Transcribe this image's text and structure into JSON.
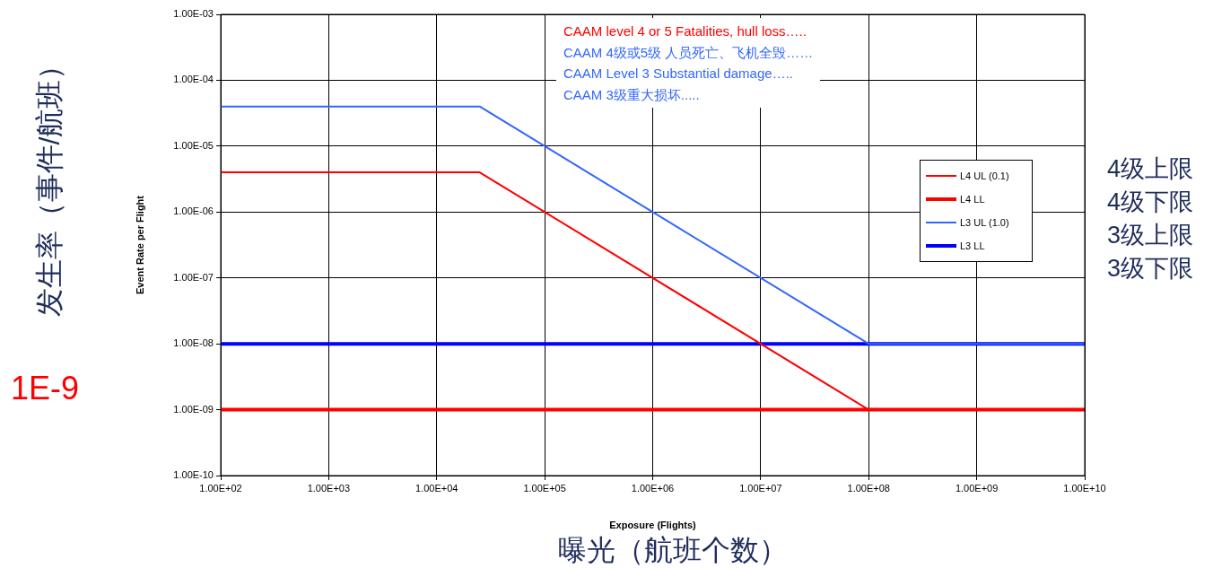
{
  "chart_data": {
    "type": "line",
    "xlabel": "Exposure (Flights)",
    "ylabel": "Event Rate per Flight",
    "log": "xy",
    "grid": true,
    "legend": "right",
    "marker": "none",
    "line_style": "solid",
    "xlim": [
      100,
      10000000000
    ],
    "ylim": [
      1e-10,
      0.001
    ],
    "xticks": [
      {
        "value": 100,
        "label": "1.00E+02"
      },
      {
        "value": 1000,
        "label": "1.00E+03"
      },
      {
        "value": 10000,
        "label": "1.00E+04"
      },
      {
        "value": 100000,
        "label": "1.00E+05"
      },
      {
        "value": 1000000,
        "label": "1.00E+06"
      },
      {
        "value": 10000000,
        "label": "1.00E+07"
      },
      {
        "value": 100000000,
        "label": "1.00E+08"
      },
      {
        "value": 1000000000,
        "label": "1.00E+09"
      },
      {
        "value": 10000000000,
        "label": "1.00E+10"
      }
    ],
    "yticks": [
      {
        "value": 1e-10,
        "label": "1.00E-10"
      },
      {
        "value": 1e-09,
        "label": "1.00E-09"
      },
      {
        "value": 1e-08,
        "label": "1.00E-08"
      },
      {
        "value": 1e-07,
        "label": "1.00E-07"
      },
      {
        "value": 1e-06,
        "label": "1.00E-06"
      },
      {
        "value": 1e-05,
        "label": "1.00E-05"
      },
      {
        "value": 0.0001,
        "label": "1.00E-04"
      },
      {
        "value": 0.001,
        "label": "1.00E-03"
      }
    ],
    "series": [
      {
        "name": "L4 UL (0.1)",
        "color": "#ff0000",
        "x": [
          100,
          25000,
          100000000,
          10000000000
        ],
        "values": [
          4e-06,
          4e-06,
          1e-09,
          1e-09
        ]
      },
      {
        "name": "L4 LL",
        "color": "#ff0000",
        "x": [
          100,
          10000000000
        ],
        "values": [
          1e-09,
          1e-09
        ]
      },
      {
        "name": "L3 UL (1.0)",
        "color": "#3366ff",
        "x": [
          100,
          25000,
          100000000,
          10000000000
        ],
        "values": [
          4e-05,
          4e-05,
          1e-08,
          1e-08
        ]
      },
      {
        "name": "L3 LL",
        "color": "#0000ff",
        "x": [
          100,
          10000000000
        ],
        "values": [
          1e-08,
          1e-08
        ]
      }
    ],
    "annotations": [
      "CAAM level 4 or 5  Fatalities, hull loss…..",
      "CAAM 4级或5级 人员死亡、飞机全毁……",
      "CAAM Level 3 Substantial damage…..",
      "CAAM 3级重大损坏.....",
      "4级上限",
      "4级下限",
      "3级上限",
      "3级下限",
      "发生率（事件/航班）",
      "1E-9",
      "曝光（航班个数）"
    ]
  }
}
